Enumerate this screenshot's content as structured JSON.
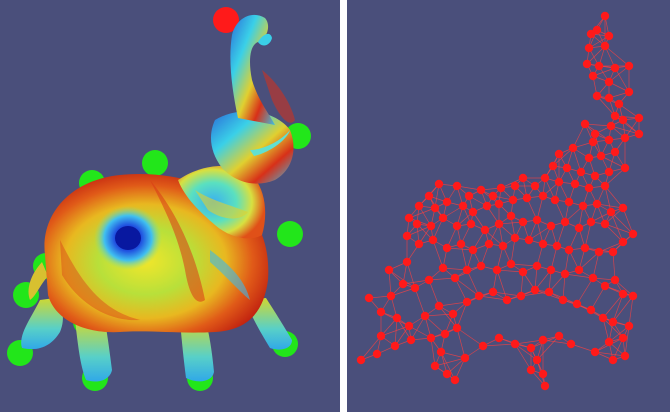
{
  "colors": {
    "background": "#4a4f7b",
    "handle_green": "#22e61a",
    "handle_red": "#ff1a1a",
    "graph_node": "#ff1a1a",
    "graph_edge": "#ff4040"
  },
  "left_view": {
    "content": "elephant-mesh",
    "shading": "rainbow-colormap"
  },
  "right_view": {
    "content": "node-edge-graph"
  }
}
